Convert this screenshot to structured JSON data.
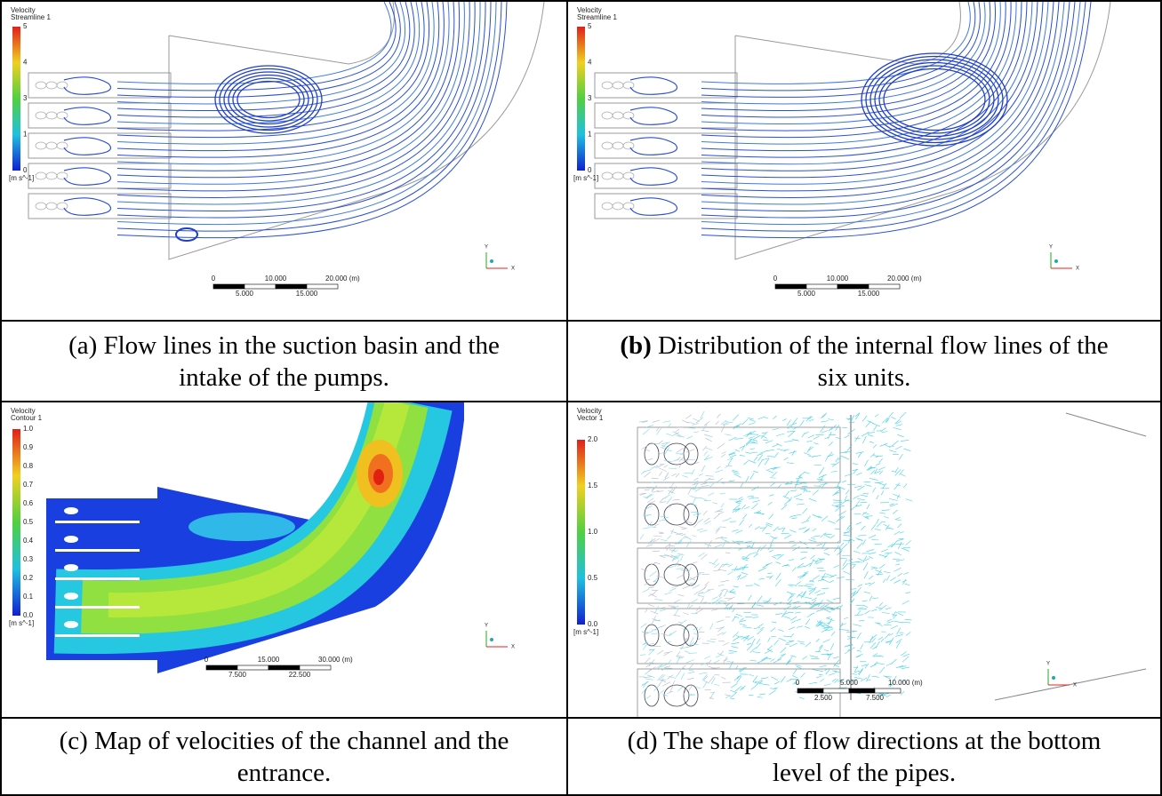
{
  "panels": [
    {
      "legend_title": [
        "Velocity",
        "Streamline 1"
      ],
      "legend_ticks": [
        "5",
        "4",
        "3",
        "1",
        "0"
      ],
      "unit": "[m s^-1]",
      "scale_top": [
        "0",
        "10.000",
        "20.000 (m)"
      ],
      "scale_bottom": [
        "5.000",
        "15.000"
      ],
      "axis": [
        "Y",
        "X"
      ],
      "caption": {
        "label": "(a)",
        "text": "Flow lines in the suction basin and the intake of the pumps."
      }
    },
    {
      "legend_title": [
        "Velocity",
        "Streamline 1"
      ],
      "legend_ticks": [
        "5",
        "4",
        "3",
        "1",
        "0"
      ],
      "unit": "[m s^-1]",
      "scale_top": [
        "0",
        "10.000",
        "20.000 (m)"
      ],
      "scale_bottom": [
        "5.000",
        "15.000"
      ],
      "axis": [
        "Y",
        "X"
      ],
      "caption": {
        "label": "(b)",
        "text": "Distribution of the internal flow lines of the six units."
      }
    },
    {
      "legend_title": [
        "Velocity",
        "Contour 1"
      ],
      "legend_ticks": [
        "1.0",
        "0.9",
        "0.8",
        "0.7",
        "0.6",
        "0.5",
        "0.4",
        "0.3",
        "0.2",
        "0.1",
        "0.0"
      ],
      "unit": "[m s^-1]",
      "scale_top": [
        "0",
        "15.000",
        "30.000 (m)"
      ],
      "scale_bottom": [
        "7.500",
        "22.500"
      ],
      "axis": [
        "Y",
        "X"
      ],
      "caption": {
        "label": "(c)",
        "text": "Map of velocities of the channel and the entrance."
      }
    },
    {
      "legend_title": [
        "Velocity",
        "Vector 1"
      ],
      "legend_ticks": [
        "2.0",
        "1.5",
        "1.0",
        "0.5",
        "0.0"
      ],
      "unit": "[m s^-1]",
      "scale_top": [
        "0",
        "5.000",
        "10.000 (m)"
      ],
      "scale_bottom": [
        "2.500",
        "7.500"
      ],
      "axis": [
        "Y",
        "X"
      ],
      "caption": {
        "label": "(d)",
        "text": "The shape of flow directions at the bottom level of the pipes."
      }
    }
  ]
}
